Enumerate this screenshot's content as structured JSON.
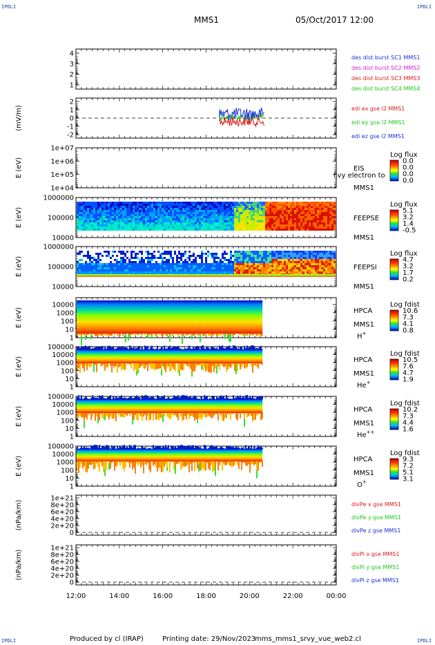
{
  "corner_tag": "IPDLI",
  "header": {
    "mission": "MMS1",
    "datetime": "05/Oct/2017 12:00"
  },
  "footer": {
    "produced_by": "Produced by cl (IRAP)",
    "printing_date": "Printing date: 29/Nov/2023",
    "filename": "mms_mms1_srvy_vue_web2.cl"
  },
  "time_axis": {
    "ticks": [
      "12:00",
      "14:00",
      "16:00",
      "18:00",
      "20:00",
      "22:00",
      "00:00"
    ]
  },
  "colors": {
    "red": "#d81818",
    "green": "#18c818",
    "blue": "#1830d8",
    "magenta": "#d818d8",
    "label_blue": "#1a1aa0"
  },
  "chart_data": [
    {
      "type": "line",
      "panel": "des_dist_burst",
      "ytick_labels": [
        "4",
        "3",
        "2",
        "1"
      ],
      "ylabel": "",
      "legend": [
        {
          "text": "des dist burst SC1 MMS1",
          "color": "#1830d8"
        },
        {
          "text": "des dist burst SC2 MMS2",
          "color": "#d818d8"
        },
        {
          "text": "des dist burst SC3 MMS3",
          "color": "#d81818"
        },
        {
          "text": "des dist burst SC4 MMS4",
          "color": "#18c818"
        }
      ]
    },
    {
      "type": "line",
      "panel": "edi_e",
      "ylabel": "(mV/m)",
      "ytick_labels": [
        "2",
        "1",
        "0",
        "-1",
        "-2"
      ],
      "ylim": [
        -2,
        2
      ],
      "x_extent_hours": [
        18.6,
        20.7
      ],
      "legend": [
        {
          "text": "edi ex gse l2 MMS1",
          "color": "#d81818"
        },
        {
          "text": "edi ey gse l2 MMS1",
          "color": "#18c818"
        },
        {
          "text": "edi ez gse l2 MMS1",
          "color": "#1830d8"
        }
      ]
    },
    {
      "type": "heatmap",
      "panel": "EIS",
      "ylabel": "E (eV)",
      "ytick_labels": [
        "1e+07",
        "1e+06",
        "1e+05",
        "1e+04"
      ],
      "side_labels": [
        "EIS",
        "MMS1"
      ],
      "overlap_text": "livy electron to",
      "colorbar_title": "Log flux",
      "colorbar_ticks": [
        "0.0",
        "0.0",
        "0.0",
        "0.0"
      ]
    },
    {
      "type": "heatmap",
      "panel": "FEEPSE",
      "ylabel": "E (eV)",
      "ytick_labels": [
        "1000000",
        "100000",
        "10000"
      ],
      "side_labels": [
        "FEEPSE",
        "MMS1"
      ],
      "colorbar_title": "Log flux",
      "colorbar_ticks": [
        "5.1",
        "3.2",
        "1.4",
        "-0.5"
      ]
    },
    {
      "type": "heatmap",
      "panel": "FEEPSI",
      "ylabel": "E (eV)",
      "ytick_labels": [
        "1000000",
        "100000",
        "10000"
      ],
      "side_labels": [
        "FEEPSI",
        "MMS1"
      ],
      "colorbar_title": "Log flux",
      "colorbar_ticks": [
        "4.7",
        "3.2",
        "1.7",
        "0.2"
      ]
    },
    {
      "type": "heatmap",
      "panel": "HPCA_H",
      "ylabel": "E (eV)",
      "ytick_labels": [
        "10000",
        "1000",
        "100",
        "10",
        "1"
      ],
      "side_labels": [
        "HPCA",
        "MMS1"
      ],
      "species": "H",
      "species_sup": "+",
      "colorbar_title": "Log fdist",
      "colorbar_ticks": [
        "10.6",
        "7.3",
        "4.1",
        "0.8"
      ]
    },
    {
      "type": "heatmap",
      "panel": "HPCA_He1",
      "ylabel": "E (eV)",
      "ytick_labels": [
        "100000",
        "10000",
        "1000",
        "100",
        "10",
        "1"
      ],
      "side_labels": [
        "HPCA",
        "MMS1"
      ],
      "species": "He",
      "species_sup": "+",
      "colorbar_title": "Log fdist",
      "colorbar_ticks": [
        "10.5",
        "7.6",
        "4.7",
        "1.9"
      ]
    },
    {
      "type": "heatmap",
      "panel": "HPCA_He2",
      "ylabel": "E (eV)",
      "ytick_labels": [
        "100000",
        "10000",
        "1000",
        "100",
        "10",
        "1"
      ],
      "side_labels": [
        "HPCA",
        "MMS1"
      ],
      "species": "He",
      "species_sup": "++",
      "colorbar_title": "Log fdist",
      "colorbar_ticks": [
        "10.2",
        "7.3",
        "4.4",
        "1.6"
      ]
    },
    {
      "type": "heatmap",
      "panel": "HPCA_O",
      "ylabel": "E (eV)",
      "ytick_labels": [
        "100000",
        "10000",
        "1000",
        "100",
        "10",
        "1"
      ],
      "side_labels": [
        "HPCA",
        "MMS1"
      ],
      "species": "O",
      "species_sup": "+",
      "colorbar_title": "Log fdist",
      "colorbar_ticks": [
        "9.3",
        "7.2",
        "5.1",
        "3.1"
      ]
    },
    {
      "type": "line",
      "panel": "divPe",
      "ylabel": "(nPa/km)",
      "ytick_labels": [
        "1e+21",
        "8e+20",
        "6e+20",
        "4e+20",
        "2e+20",
        "0"
      ],
      "legend": [
        {
          "text": "divPe x gse MMS1",
          "color": "#d81818"
        },
        {
          "text": "divPe y gse MMS1",
          "color": "#18c818"
        },
        {
          "text": "divPe z gse MMS1",
          "color": "#1830d8"
        }
      ]
    },
    {
      "type": "line",
      "panel": "divPi",
      "ylabel": "(nPa/km)",
      "ytick_labels": [
        "1e+21",
        "8e+20",
        "6e+20",
        "4e+20",
        "2e+20",
        "0"
      ],
      "legend": [
        {
          "text": "divPi x gse MMS1",
          "color": "#d81818"
        },
        {
          "text": "divPi y gse MMS1",
          "color": "#18c818"
        },
        {
          "text": "divPi z gse MMS1",
          "color": "#1830d8"
        }
      ]
    }
  ]
}
